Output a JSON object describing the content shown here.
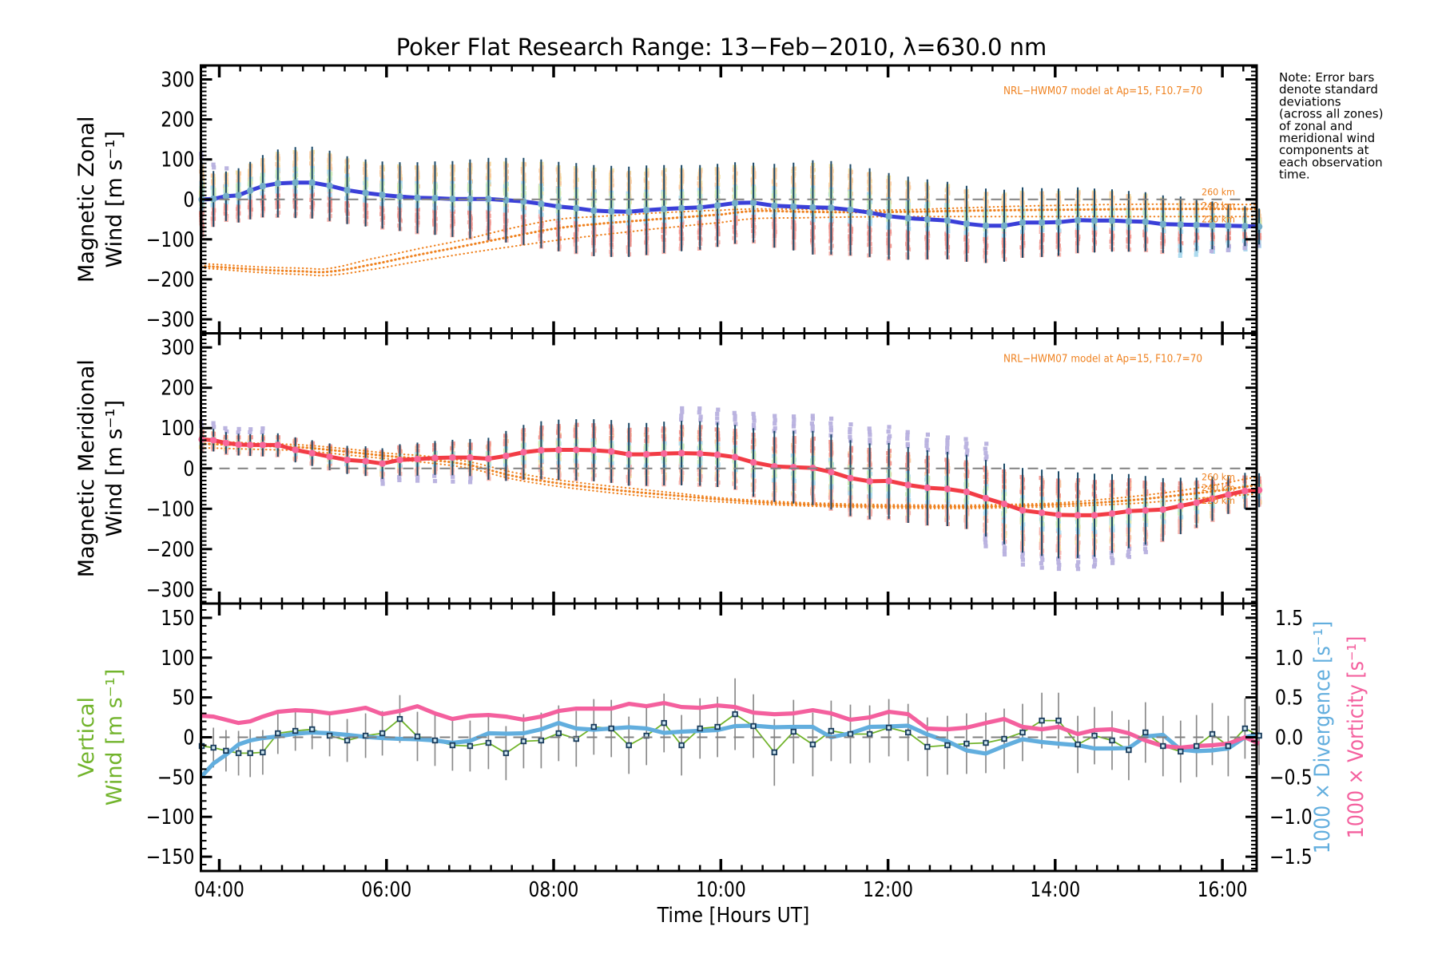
{
  "title": "Poker Flat Research Range: 13−Feb−2010, λ=630.0 nm",
  "x_axis": {
    "label": "Time [Hours UT]",
    "tick_labels": [
      "04:00",
      "06:00",
      "08:00",
      "10:00",
      "12:00",
      "14:00",
      "16:00"
    ],
    "tick_hours": [
      4,
      6,
      8,
      10,
      12,
      14,
      16
    ],
    "minor_step_hours": 0.25,
    "range_hours": [
      3.78,
      16.41
    ]
  },
  "note_lines": [
    "Note: Error bars",
    "denote standard",
    "deviations",
    "(across all zones)",
    "of zonal and",
    "meridional wind",
    "components at",
    "each observation",
    "time."
  ],
  "panels": [
    {
      "id": "zonal",
      "ylabel_line1": "Magnetic Zonal",
      "ylabel_line2": "Wind [m s⁻¹]",
      "y_range": [
        -335,
        335
      ],
      "y_major_ticks": [
        -300,
        -200,
        -100,
        0,
        100,
        200,
        300
      ],
      "y_minor_step": 10,
      "model_label": "NRL−HWM07 model at Ap=15, F10.7=70",
      "altitude_labels": [
        {
          "text": "260 km",
          "v": 19
        },
        {
          "text": "240 km",
          "v": -14
        },
        {
          "text": "220 km",
          "v": -48
        }
      ]
    },
    {
      "id": "meridional",
      "ylabel_line1": "Magnetic Meridional",
      "ylabel_line2": "Wind [m s⁻¹]",
      "y_range": [
        -335,
        335
      ],
      "y_major_ticks": [
        -300,
        -200,
        -100,
        0,
        100,
        200,
        300
      ],
      "y_minor_step": 10,
      "model_label": "NRL−HWM07 model at Ap=15, F10.7=70",
      "altitude_labels": [
        {
          "text": "260 km",
          "v": -20
        },
        {
          "text": "240 km",
          "v": -47
        },
        {
          "text": "220 km",
          "v": -79
        }
      ]
    },
    {
      "id": "vertical",
      "ylabel_line1": "Vertical",
      "ylabel_line2": "Wind [m s⁻¹]",
      "y_range": [
        -168,
        168
      ],
      "y_major_ticks": [
        -150,
        -100,
        -50,
        0,
        50,
        100,
        150
      ],
      "y_minor_step": 10,
      "right_axis": {
        "tick_labels": [
          "1.5",
          "1.0",
          "0.5",
          "0.0",
          "-0.5",
          "-1.0",
          "-1.5"
        ],
        "tick_values": [
          1.5,
          1.0,
          0.5,
          0.0,
          -0.5,
          -1.0,
          -1.5
        ],
        "scale_per_left_unit": 0.01,
        "label_divergence": "1000 × Divergence [s⁻¹]",
        "label_vorticity": "1000 × Vorticity [s⁻¹]"
      }
    }
  ],
  "chart_data": [
    {
      "type": "line",
      "panel": "zonal",
      "title": "Magnetic Zonal Wind [m s-1] vs Time [Hours UT]",
      "ylim": [
        -335,
        335
      ],
      "x_hours": [
        3.79,
        3.93,
        4.08,
        4.23,
        4.37,
        4.52,
        4.7,
        4.91,
        5.11,
        5.32,
        5.53,
        5.75,
        5.95,
        6.16,
        6.37,
        6.58,
        6.79,
        7,
        7.22,
        7.43,
        7.64,
        7.85,
        8.06,
        8.27,
        8.48,
        8.69,
        8.9,
        9.11,
        9.32,
        9.53,
        9.75,
        9.96,
        10.17,
        10.39,
        10.64,
        10.87,
        11.1,
        11.32,
        11.55,
        11.78,
        12.01,
        12.24,
        12.47,
        12.71,
        12.94,
        13.17,
        13.39,
        13.61,
        13.84,
        14.04,
        14.27,
        14.47,
        14.68,
        14.88,
        15.08,
        15.29,
        15.5,
        15.69,
        15.88,
        16.07,
        16.27,
        16.44
      ],
      "wind": [
        0,
        1,
        8,
        10,
        22,
        33,
        40,
        42,
        42,
        34,
        23,
        16,
        11,
        7,
        4,
        3,
        1,
        1,
        1,
        -2,
        -5,
        -11,
        -18,
        -22,
        -28,
        -30,
        -31,
        -27,
        -24,
        -22,
        -20,
        -15,
        -9,
        -8,
        -16,
        -18,
        -20,
        -21,
        -26,
        -33,
        -42,
        -47,
        -50,
        -53,
        -61,
        -66,
        -66,
        -58,
        -58,
        -57,
        -52,
        -53,
        -53,
        -55,
        -56,
        -62,
        -63,
        -64,
        -65,
        -66,
        -67,
        -68
      ],
      "sigma": [
        95,
        70,
        62,
        68,
        72,
        78,
        85,
        89,
        90,
        88,
        85,
        84,
        84,
        86,
        89,
        92,
        95,
        99,
        103,
        106,
        109,
        111,
        112,
        113,
        114,
        114,
        113,
        112,
        110,
        108,
        106,
        104,
        102,
        100,
        105,
        110,
        118,
        117,
        114,
        111,
        108,
        104,
        100,
        97,
        95,
        93,
        90,
        88,
        86,
        84,
        82,
        80,
        78,
        76,
        74,
        72,
        70,
        65,
        60,
        55,
        50,
        45
      ],
      "model_t": [
        3.78,
        4.5,
        5.0,
        5.3,
        5.77,
        6.35,
        6.92,
        7.5,
        8.05,
        8.6,
        9.2,
        10.0,
        10.4,
        11.0,
        11.6,
        12.2,
        12.8,
        13.4,
        14.0,
        14.6,
        15.2,
        15.8,
        16.41
      ],
      "model_260km": [
        -161,
        -169,
        -172,
        -173,
        -151,
        -125,
        -101,
        -72,
        -50,
        -42,
        -34,
        -27,
        -24,
        -25,
        -27,
        -26,
        -22,
        -18,
        -15,
        -13,
        -12,
        -12,
        -13
      ],
      "model_240km": [
        -167,
        -176,
        -180,
        -181,
        -165,
        -140,
        -117,
        -93,
        -72,
        -60,
        -50,
        -38,
        -29,
        -31,
        -32,
        -31,
        -29,
        -27,
        -26,
        -25,
        -24,
        -24,
        -24
      ],
      "model_220km": [
        -172,
        -183,
        -188,
        -190,
        -177,
        -156,
        -136,
        -118,
        -102,
        -88,
        -74,
        -58,
        -48,
        -46,
        -44,
        -43,
        -43,
        -43,
        -43,
        -43,
        -43,
        -43,
        -43
      ]
    },
    {
      "type": "line",
      "panel": "meridional",
      "title": "Magnetic Meridional Wind [m s-1] vs Time [Hours UT]",
      "ylim": [
        -335,
        335
      ],
      "x_hours": [
        3.79,
        3.93,
        4.08,
        4.23,
        4.37,
        4.52,
        4.7,
        4.91,
        5.11,
        5.32,
        5.53,
        5.75,
        5.95,
        6.16,
        6.37,
        6.58,
        6.79,
        7,
        7.22,
        7.43,
        7.64,
        7.85,
        8.06,
        8.27,
        8.48,
        8.69,
        8.9,
        9.11,
        9.32,
        9.53,
        9.75,
        9.96,
        10.17,
        10.39,
        10.64,
        10.87,
        11.1,
        11.32,
        11.55,
        11.78,
        12.01,
        12.24,
        12.47,
        12.71,
        12.94,
        13.17,
        13.39,
        13.61,
        13.84,
        14.04,
        14.27,
        14.47,
        14.68,
        14.88,
        15.08,
        15.29,
        15.5,
        15.69,
        15.88,
        16.07,
        16.27,
        16.44
      ],
      "wind": [
        72,
        70,
        63,
        59,
        58,
        58,
        58,
        46,
        38,
        29,
        21,
        18,
        12,
        21,
        23,
        26,
        27,
        27,
        24,
        31,
        40,
        45,
        46,
        46,
        45,
        42,
        35,
        35,
        37,
        38,
        37,
        34,
        28,
        15,
        5,
        3,
        1,
        -9,
        -24,
        -32,
        -31,
        -41,
        -48,
        -51,
        -58,
        -74,
        -88,
        -104,
        -110,
        -115,
        -116,
        -116,
        -112,
        -106,
        -104,
        -102,
        -93,
        -85,
        -75,
        -65,
        -56,
        -54
      ],
      "sigma": [
        30,
        28,
        27,
        27,
        27,
        28,
        29,
        31,
        32,
        33,
        35,
        37,
        38,
        39,
        41,
        42,
        44,
        46,
        52,
        62,
        68,
        72,
        75,
        76,
        77,
        78,
        78,
        78,
        79,
        80,
        80,
        80,
        80,
        85,
        88,
        90,
        92,
        93,
        94,
        94,
        94,
        94,
        93,
        92,
        92,
        95,
        100,
        105,
        107,
        108,
        106,
        103,
        98,
        92,
        85,
        78,
        70,
        62,
        55,
        48,
        45,
        42
      ],
      "model_t": [
        3.78,
        4.5,
        5.0,
        5.5,
        6.0,
        6.5,
        7.0,
        7.5,
        8.0,
        8.5,
        9.0,
        9.5,
        10.0,
        10.5,
        11.0,
        11.5,
        12.0,
        12.5,
        13.0,
        13.5,
        14.0,
        14.5,
        15.0,
        15.5,
        16.0,
        16.41
      ],
      "model_260km": [
        68,
        62,
        58,
        49,
        38,
        30,
        16,
        -9,
        -27,
        -40,
        -51,
        -62,
        -73,
        -80,
        -85,
        -88,
        -90,
        -91,
        -91,
        -89,
        -86,
        -78,
        -68,
        -55,
        -38,
        -22
      ],
      "model_240km": [
        61,
        56,
        52,
        42,
        31,
        22,
        8,
        -18,
        -35,
        -48,
        -59,
        -68,
        -77,
        -84,
        -89,
        -92,
        -94,
        -95,
        -95,
        -93,
        -90,
        -85,
        -77,
        -66,
        -54,
        -42
      ],
      "model_220km": [
        51,
        47,
        44,
        34,
        24,
        14,
        0,
        -26,
        -43,
        -56,
        -67,
        -76,
        -83,
        -89,
        -93,
        -96,
        -98,
        -99,
        -99,
        -97,
        -95,
        -91,
        -86,
        -78,
        -70,
        -64
      ]
    },
    {
      "type": "line",
      "panel": "vertical",
      "title": "Vertical Wind, 1000 x Divergence, 1000 x Vorticity vs Time [Hours UT]",
      "ylim_left": [
        -168,
        168
      ],
      "ylim_right": [
        -1.68,
        1.68
      ],
      "x_hours": [
        3.79,
        3.93,
        4.08,
        4.23,
        4.37,
        4.52,
        4.7,
        4.91,
        5.11,
        5.32,
        5.53,
        5.75,
        5.95,
        6.16,
        6.37,
        6.58,
        6.79,
        7,
        7.22,
        7.43,
        7.64,
        7.85,
        8.06,
        8.27,
        8.48,
        8.69,
        8.9,
        9.11,
        9.32,
        9.53,
        9.75,
        9.96,
        10.17,
        10.39,
        10.64,
        10.87,
        11.1,
        11.32,
        11.55,
        11.78,
        12.01,
        12.24,
        12.47,
        12.71,
        12.94,
        13.17,
        13.39,
        13.61,
        13.84,
        14.04,
        14.27,
        14.47,
        14.68,
        14.88,
        15.08,
        15.29,
        15.5,
        15.69,
        15.88,
        16.07,
        16.27,
        16.44
      ],
      "vertical_wind": [
        -11,
        -13,
        -17,
        -20,
        -20,
        -19,
        5,
        8,
        10,
        2,
        -4,
        2,
        5,
        23,
        1,
        -4,
        -10,
        -11,
        -7,
        -20,
        -5,
        -4,
        5,
        -2,
        13,
        11,
        -10,
        2,
        18,
        -10,
        11,
        13,
        29,
        14,
        -19,
        7,
        -9,
        8,
        4,
        4,
        12,
        6,
        -12,
        -10,
        -8,
        -7,
        -2,
        6,
        21,
        21,
        -9,
        2,
        -4,
        -16,
        6,
        -11,
        -18,
        -11,
        4,
        -11,
        11,
        2
      ],
      "vertical_sigma": [
        25,
        25,
        26,
        28,
        30,
        28,
        26,
        25,
        25,
        26,
        27,
        28,
        28,
        30,
        31,
        32,
        32,
        32,
        33,
        34,
        34,
        35,
        35,
        35,
        35,
        36,
        36,
        37,
        37,
        38,
        38,
        38,
        45,
        40,
        42,
        40,
        40,
        38,
        37,
        36,
        36,
        36,
        37,
        37,
        38,
        38,
        38,
        36,
        35,
        35,
        36,
        36,
        37,
        38,
        38,
        38,
        39,
        39,
        39,
        38,
        38,
        37
      ],
      "divergence_1000": [
        -0.49,
        -0.33,
        -0.22,
        -0.09,
        -0.04,
        -0.01,
        0.01,
        0.045,
        0.06,
        0.05,
        0.03,
        0.005,
        -0.01,
        -0.02,
        -0.025,
        -0.04,
        -0.07,
        -0.045,
        0.05,
        0.045,
        0.05,
        0.1,
        0.18,
        0.11,
        0.095,
        0.11,
        0.125,
        0.11,
        0.055,
        0.07,
        0.08,
        0.09,
        0.14,
        0.145,
        0.125,
        0.13,
        0.13,
        0,
        0.05,
        0.13,
        0.135,
        0.145,
        0.035,
        -0.05,
        -0.165,
        -0.205,
        -0.11,
        -0.025,
        -0.06,
        -0.08,
        -0.1,
        -0.14,
        -0.14,
        -0.135,
        0.01,
        0.03,
        -0.155,
        -0.175,
        -0.165,
        -0.14,
        0,
        0.04
      ],
      "vorticity_1000": [
        0.27,
        0.26,
        0.22,
        0.18,
        0.2,
        0.26,
        0.32,
        0.34,
        0.33,
        0.3,
        0.33,
        0.37,
        0.29,
        0.33,
        0.39,
        0.3,
        0.23,
        0.27,
        0.28,
        0.26,
        0.22,
        0.26,
        0.33,
        0.36,
        0.36,
        0.36,
        0.42,
        0.39,
        0.43,
        0.38,
        0.37,
        0.4,
        0.38,
        0.31,
        0.29,
        0.3,
        0.34,
        0.3,
        0.22,
        0.25,
        0.32,
        0.29,
        0.11,
        0.1,
        0.12,
        0.18,
        0.23,
        0.13,
        0.1,
        0.13,
        0.04,
        0.09,
        0.1,
        0.05,
        -0.04,
        -0.11,
        -0.13,
        -0.11,
        -0.1,
        -0.08,
        0,
        -0.08
      ]
    }
  ],
  "colors": {
    "zonal_line": "#3a3fd8",
    "zonal_marker": "#74aec8",
    "meridional_line": "#f23c45",
    "meridional_marker": "#f8679a",
    "error_bar_wind": "#1c4a68",
    "model_orange": "#ef8220",
    "vertical_line": "#72b42c",
    "vertical_marker_fill": "#cfe7f2",
    "vertical_marker_edge": "#173a5a",
    "vertical_error_bar": "#8a8a8a",
    "divergence_line": "#62aede",
    "vorticity_line": "#f4609e",
    "zero_dash": "#808080",
    "frame": "#000000",
    "zone_yellow": "#f2df9e",
    "zone_peach": "#f8c79c",
    "zone_pink": "#f5b0aa",
    "zone_salmon": "#f0948c",
    "zone_lightblue": "#a9d9ee",
    "zone_green": "#c9e9b4",
    "zone_lavender": "#b7b0de"
  },
  "zone_scatter": {
    "zonal_bands": [
      {
        "color": "zone_yellow",
        "lo": 0.1,
        "hi": 0.92,
        "n": 7,
        "i0": 0,
        "i1": 61
      },
      {
        "color": "zone_peach",
        "lo": 0.3,
        "hi": 0.88,
        "n": 4,
        "i0": 0,
        "i1": 61
      },
      {
        "color": "zone_pink",
        "lo": -1.0,
        "hi": -0.1,
        "n": 8,
        "i0": 0,
        "i1": 61
      },
      {
        "color": "zone_salmon",
        "lo": -0.75,
        "hi": -0.3,
        "n": 3,
        "i0": 0,
        "i1": 61
      },
      {
        "color": "zone_lightblue",
        "lo": -0.3,
        "hi": 0.45,
        "n": 3,
        "i0": 0,
        "i1": 61
      },
      {
        "color": "zone_green",
        "lo": -0.15,
        "hi": 0.4,
        "n": 3,
        "i0": 0,
        "i1": 61
      },
      {
        "color": "zone_lavender",
        "lo": 1.05,
        "hi": 1.25,
        "n": 2,
        "i0": 0,
        "i1": 2
      },
      {
        "color": "zone_lightblue",
        "lo": -1.2,
        "hi": -0.7,
        "n": 4,
        "i0": 56,
        "i1": 61
      },
      {
        "color": "zone_lavender",
        "lo": -1.15,
        "hi": -0.85,
        "n": 2,
        "i0": 58,
        "i1": 61
      }
    ],
    "meridional_bands": [
      {
        "color": "zone_yellow",
        "lo": -0.85,
        "hi": -0.05,
        "n": 6,
        "i0": 0,
        "i1": 61
      },
      {
        "color": "zone_peach",
        "lo": 0.15,
        "hi": 0.8,
        "n": 5,
        "i0": 0,
        "i1": 61
      },
      {
        "color": "zone_pink",
        "lo": -1.0,
        "hi": -0.35,
        "n": 5,
        "i0": 0,
        "i1": 61
      },
      {
        "color": "zone_salmon",
        "lo": 0.4,
        "hi": 0.85,
        "n": 2,
        "i0": 0,
        "i1": 61
      },
      {
        "color": "zone_lightblue",
        "lo": -0.45,
        "hi": 0.35,
        "n": 3,
        "i0": 0,
        "i1": 61
      },
      {
        "color": "zone_green",
        "lo": -0.3,
        "hi": 0.3,
        "n": 3,
        "i0": 0,
        "i1": 61
      },
      {
        "color": "zone_lavender",
        "lo": 0.95,
        "hi": 1.6,
        "n": 4,
        "i0": 0,
        "i1": 5
      },
      {
        "color": "zone_lavender",
        "lo": -1.45,
        "hi": -1.0,
        "n": 3,
        "i0": 12,
        "i1": 17
      },
      {
        "color": "zone_lavender",
        "lo": 0.95,
        "hi": 1.45,
        "n": 5,
        "i0": 29,
        "i1": 45
      },
      {
        "color": "zone_lavender",
        "lo": -1.3,
        "hi": -0.95,
        "n": 2,
        "i0": 45,
        "i1": 54
      }
    ]
  }
}
